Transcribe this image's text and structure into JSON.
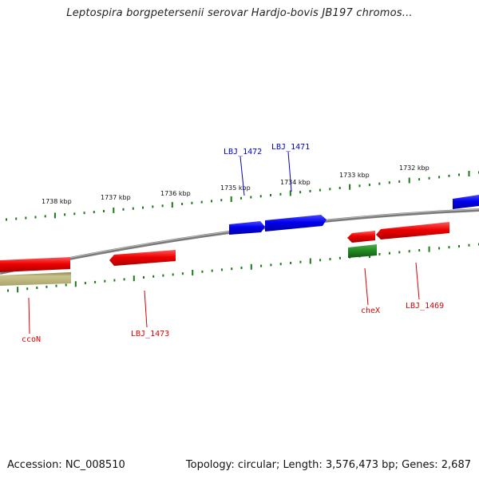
{
  "title": "Leptospira borgpetersenii serovar Hardjo-bovis JB197 chromos...",
  "footer": {
    "accession": "Accession: NC_008510",
    "topology": "Topology: circular; Length: 3,576,473 bp; Genes: 2,687"
  },
  "scale_labels": [
    "1738 kbp",
    "1737 kbp",
    "1736 kbp",
    "1735 kbp",
    "1734 kbp",
    "1733 kbp",
    "1732 kbp"
  ],
  "gene_labels": {
    "lbj1472": "LBJ_1472",
    "lbj1471": "LBJ_1471",
    "ccon": "ccoN",
    "lbj1473": "LBJ_1473",
    "chex": "cheX",
    "lbj1469": "LBJ_1469"
  },
  "colors": {
    "forward_gene": "#0000ee",
    "reverse_gene": "#ee0000",
    "rna_gene": "#228b22",
    "other_gene": "#b5b07a",
    "backbone": "#808080",
    "ticks": "#1a7a1a"
  }
}
